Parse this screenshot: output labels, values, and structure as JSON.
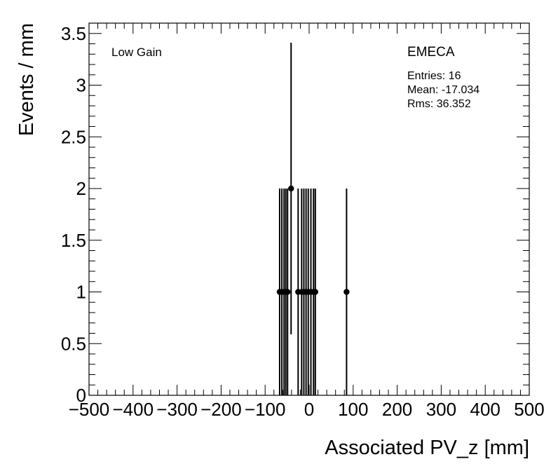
{
  "chart_data": {
    "type": "scatter",
    "xlabel": "Associated PV_z [mm]",
    "ylabel": "Events / mm",
    "xlim": [
      -500,
      500
    ],
    "ylim": [
      0,
      3.6
    ],
    "x_ticks": [
      -500,
      -400,
      -300,
      -200,
      -100,
      0,
      100,
      200,
      300,
      400,
      500
    ],
    "y_ticks": [
      0,
      0.5,
      1,
      1.5,
      2,
      2.5,
      3,
      3.5
    ],
    "x_tick_labels": [
      "−500",
      "−400",
      "−300",
      "−200",
      "−100",
      "0",
      "100",
      "200",
      "300",
      "400",
      "500"
    ],
    "y_tick_labels": [
      "0",
      "0.5",
      "1",
      "1.5",
      "2",
      "2.5",
      "3",
      "3.5"
    ],
    "grid": false,
    "series": [
      {
        "points": [
          {
            "x": -67,
            "y": 1,
            "err": 1
          },
          {
            "x": -62,
            "y": 1,
            "err": 1
          },
          {
            "x": -57,
            "y": 1,
            "err": 1
          },
          {
            "x": -53,
            "y": 1,
            "err": 1
          },
          {
            "x": -49,
            "y": 1,
            "err": 1
          },
          {
            "x": -41,
            "y": 2,
            "err": 1.41
          },
          {
            "x": -25,
            "y": 1,
            "err": 1
          },
          {
            "x": -17,
            "y": 1,
            "err": 1
          },
          {
            "x": -12,
            "y": 1,
            "err": 1
          },
          {
            "x": -7,
            "y": 1,
            "err": 1
          },
          {
            "x": -2,
            "y": 1,
            "err": 1
          },
          {
            "x": 4,
            "y": 1,
            "err": 1
          },
          {
            "x": 10,
            "y": 1,
            "err": 1
          },
          {
            "x": 14,
            "y": 1,
            "err": 1
          },
          {
            "x": 85,
            "y": 1,
            "err": 1
          }
        ]
      }
    ],
    "annotations": {
      "label_left": "Low Gain",
      "label_right": "EMECA",
      "entries": "Entries: 16",
      "mean": "Mean: -17.034",
      "rms": "Rms: 36.352"
    }
  }
}
